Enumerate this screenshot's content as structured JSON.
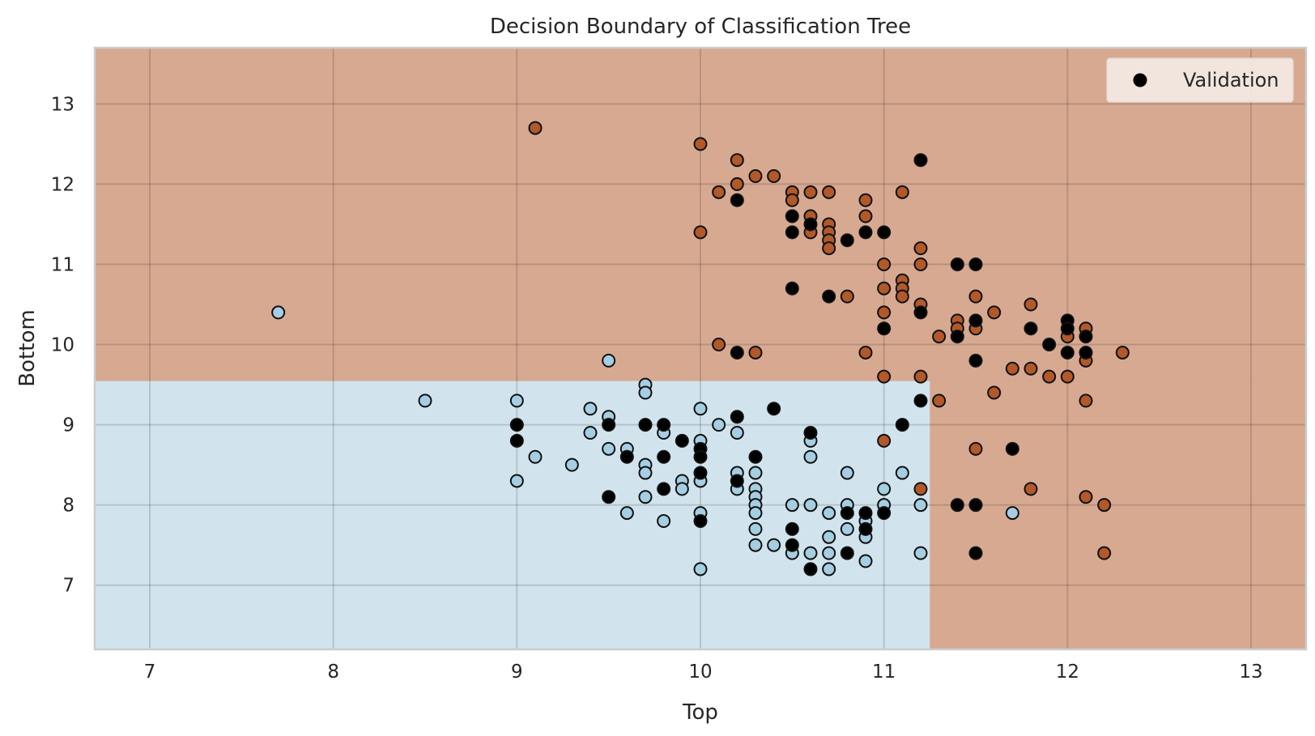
{
  "chart_data": {
    "type": "scatter",
    "title": "Decision Boundary of Classification Tree",
    "xlabel": "Top",
    "ylabel": "Bottom",
    "xlim": [
      6.7,
      13.3
    ],
    "ylim": [
      6.2,
      13.7
    ],
    "xticks": [
      "7",
      "8",
      "9",
      "10",
      "11",
      "12",
      "13"
    ],
    "yticks": [
      "7",
      "8",
      "9",
      "10",
      "11",
      "12",
      "13"
    ],
    "grid": true,
    "legend": {
      "position": "top-right",
      "entries": [
        "Validation"
      ]
    },
    "colors": {
      "region_class0": "#d1e4ee",
      "region_class1": "#d7a991",
      "point_class0": "#a6cee3",
      "point_class1": "#b15928",
      "validation": "#000000"
    },
    "decision_regions": [
      {
        "class": 0,
        "x": [
          6.7,
          11.25
        ],
        "y": [
          6.2,
          9.55
        ]
      },
      {
        "class": 1,
        "x": [
          6.7,
          13.3
        ],
        "y": [
          9.55,
          13.7
        ]
      },
      {
        "class": 1,
        "x": [
          11.25,
          13.3
        ],
        "y": [
          6.2,
          9.55
        ]
      }
    ],
    "class0_points": [
      [
        7.7,
        10.4
      ],
      [
        8.5,
        9.3
      ],
      [
        9.0,
        9.3
      ],
      [
        9.0,
        8.3
      ],
      [
        9.1,
        8.6
      ],
      [
        9.3,
        8.5
      ],
      [
        9.4,
        9.2
      ],
      [
        9.4,
        8.9
      ],
      [
        9.5,
        9.8
      ],
      [
        9.5,
        9.1
      ],
      [
        9.5,
        8.7
      ],
      [
        9.6,
        8.7
      ],
      [
        9.6,
        7.9
      ],
      [
        9.7,
        9.5
      ],
      [
        9.7,
        9.4
      ],
      [
        9.7,
        8.5
      ],
      [
        9.7,
        8.4
      ],
      [
        9.7,
        8.1
      ],
      [
        9.8,
        8.9
      ],
      [
        9.8,
        7.8
      ],
      [
        9.9,
        8.3
      ],
      [
        9.9,
        8.2
      ],
      [
        10.0,
        9.2
      ],
      [
        10.0,
        8.8
      ],
      [
        10.0,
        8.3
      ],
      [
        10.0,
        7.9
      ],
      [
        10.0,
        7.2
      ],
      [
        10.1,
        9.0
      ],
      [
        10.2,
        8.9
      ],
      [
        10.2,
        8.4
      ],
      [
        10.2,
        8.2
      ],
      [
        10.3,
        8.4
      ],
      [
        10.3,
        8.2
      ],
      [
        10.3,
        8.1
      ],
      [
        10.3,
        8.0
      ],
      [
        10.3,
        7.9
      ],
      [
        10.3,
        7.7
      ],
      [
        10.3,
        7.5
      ],
      [
        10.4,
        7.5
      ],
      [
        10.5,
        8.0
      ],
      [
        10.5,
        7.4
      ],
      [
        10.6,
        8.8
      ],
      [
        10.6,
        8.6
      ],
      [
        10.6,
        8.0
      ],
      [
        10.6,
        7.4
      ],
      [
        10.7,
        7.9
      ],
      [
        10.7,
        7.6
      ],
      [
        10.7,
        7.4
      ],
      [
        10.7,
        7.2
      ],
      [
        10.8,
        8.4
      ],
      [
        10.8,
        8.0
      ],
      [
        10.8,
        7.7
      ],
      [
        10.9,
        7.8
      ],
      [
        10.9,
        7.6
      ],
      [
        10.9,
        7.3
      ],
      [
        11.0,
        8.2
      ],
      [
        11.0,
        8.0
      ],
      [
        11.1,
        8.4
      ],
      [
        11.2,
        8.0
      ],
      [
        11.2,
        7.4
      ],
      [
        11.7,
        7.9
      ]
    ],
    "class1_points": [
      [
        9.1,
        12.7
      ],
      [
        10.0,
        12.5
      ],
      [
        10.0,
        11.4
      ],
      [
        10.1,
        11.9
      ],
      [
        10.1,
        10.0
      ],
      [
        10.2,
        12.3
      ],
      [
        10.2,
        12.0
      ],
      [
        10.3,
        12.1
      ],
      [
        10.3,
        9.9
      ],
      [
        10.4,
        12.1
      ],
      [
        10.5,
        11.9
      ],
      [
        10.5,
        11.8
      ],
      [
        10.6,
        11.9
      ],
      [
        10.6,
        11.6
      ],
      [
        10.6,
        11.4
      ],
      [
        10.7,
        11.9
      ],
      [
        10.7,
        11.5
      ],
      [
        10.7,
        11.4
      ],
      [
        10.7,
        11.3
      ],
      [
        10.7,
        11.2
      ],
      [
        10.8,
        10.6
      ],
      [
        10.9,
        11.8
      ],
      [
        10.9,
        11.6
      ],
      [
        10.9,
        9.9
      ],
      [
        11.0,
        11.0
      ],
      [
        11.0,
        10.7
      ],
      [
        11.0,
        10.4
      ],
      [
        11.0,
        9.6
      ],
      [
        11.0,
        8.8
      ],
      [
        11.1,
        11.9
      ],
      [
        11.1,
        10.8
      ],
      [
        11.1,
        10.7
      ],
      [
        11.1,
        10.6
      ],
      [
        11.2,
        11.2
      ],
      [
        11.2,
        11.0
      ],
      [
        11.2,
        10.5
      ],
      [
        11.2,
        9.6
      ],
      [
        11.2,
        8.2
      ],
      [
        11.3,
        10.1
      ],
      [
        11.3,
        9.3
      ],
      [
        11.4,
        10.3
      ],
      [
        11.4,
        10.2
      ],
      [
        11.5,
        10.6
      ],
      [
        11.5,
        10.2
      ],
      [
        11.5,
        8.7
      ],
      [
        11.6,
        10.4
      ],
      [
        11.6,
        9.4
      ],
      [
        11.7,
        9.7
      ],
      [
        11.8,
        10.5
      ],
      [
        11.8,
        9.7
      ],
      [
        11.8,
        8.2
      ],
      [
        11.9,
        9.6
      ],
      [
        12.0,
        10.1
      ],
      [
        12.0,
        9.6
      ],
      [
        12.1,
        10.2
      ],
      [
        12.1,
        9.8
      ],
      [
        12.1,
        9.3
      ],
      [
        12.1,
        8.1
      ],
      [
        12.2,
        8.0
      ],
      [
        12.2,
        7.4
      ],
      [
        12.3,
        9.9
      ]
    ],
    "validation_points": [
      [
        9.0,
        9.0
      ],
      [
        9.0,
        8.8
      ],
      [
        9.5,
        9.0
      ],
      [
        9.5,
        8.1
      ],
      [
        9.6,
        8.6
      ],
      [
        9.7,
        9.0
      ],
      [
        9.8,
        9.0
      ],
      [
        9.8,
        8.6
      ],
      [
        9.8,
        8.2
      ],
      [
        9.9,
        8.8
      ],
      [
        10.0,
        8.7
      ],
      [
        10.0,
        8.6
      ],
      [
        10.0,
        8.4
      ],
      [
        10.0,
        7.8
      ],
      [
        10.2,
        11.8
      ],
      [
        10.2,
        9.9
      ],
      [
        10.2,
        9.1
      ],
      [
        10.2,
        8.3
      ],
      [
        10.3,
        8.6
      ],
      [
        10.4,
        9.2
      ],
      [
        10.5,
        11.6
      ],
      [
        10.5,
        11.4
      ],
      [
        10.5,
        10.7
      ],
      [
        10.5,
        7.7
      ],
      [
        10.5,
        7.5
      ],
      [
        10.6,
        11.5
      ],
      [
        10.6,
        8.9
      ],
      [
        10.6,
        7.2
      ],
      [
        10.7,
        10.6
      ],
      [
        10.8,
        11.3
      ],
      [
        10.8,
        7.9
      ],
      [
        10.8,
        7.4
      ],
      [
        10.9,
        11.4
      ],
      [
        10.9,
        7.9
      ],
      [
        10.9,
        7.7
      ],
      [
        11.0,
        11.4
      ],
      [
        11.0,
        10.2
      ],
      [
        11.0,
        7.9
      ],
      [
        11.1,
        9.0
      ],
      [
        11.2,
        12.3
      ],
      [
        11.2,
        10.4
      ],
      [
        11.2,
        9.3
      ],
      [
        11.4,
        11.0
      ],
      [
        11.4,
        10.1
      ],
      [
        11.4,
        8.0
      ],
      [
        11.5,
        11.0
      ],
      [
        11.5,
        10.3
      ],
      [
        11.5,
        9.8
      ],
      [
        11.5,
        8.0
      ],
      [
        11.5,
        7.4
      ],
      [
        11.7,
        8.7
      ],
      [
        11.8,
        10.2
      ],
      [
        11.9,
        10.0
      ],
      [
        12.0,
        10.3
      ],
      [
        12.0,
        10.2
      ],
      [
        12.0,
        9.9
      ],
      [
        12.1,
        10.1
      ],
      [
        12.1,
        9.9
      ]
    ]
  }
}
